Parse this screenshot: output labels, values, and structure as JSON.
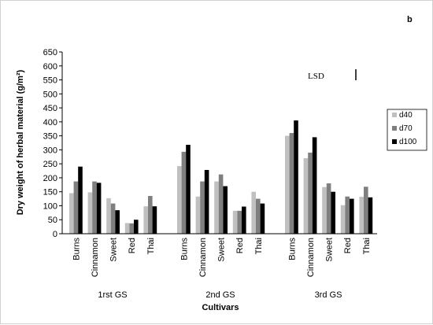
{
  "chart_data": {
    "type": "bar",
    "panel_label": "b",
    "ylabel": "Dry weight of herbal material (g/m²)",
    "xlabel": "Cultivars",
    "ylim": [
      0,
      650
    ],
    "yticks": [
      0,
      50,
      100,
      150,
      200,
      250,
      300,
      350,
      400,
      450,
      500,
      550,
      600,
      650
    ],
    "grid": false,
    "legend_position": "right",
    "lsd_label": "LSD",
    "groups": [
      {
        "name": "1rst GS",
        "categories": [
          "Burns",
          "Cinnamon",
          "Sweet",
          "Red",
          "Thai"
        ],
        "series": [
          {
            "name": "d40",
            "values": [
              145,
              148,
              127,
              38,
              98
            ]
          },
          {
            "name": "d70",
            "values": [
              187,
              187,
              108,
              37,
              135
            ]
          },
          {
            "name": "d100",
            "values": [
              240,
              182,
              84,
              50,
              98
            ]
          }
        ]
      },
      {
        "name": "2nd GS",
        "categories": [
          "Burns",
          "Cinnamon",
          "Sweet",
          "Red",
          "Thai"
        ],
        "series": [
          {
            "name": "d40",
            "values": [
              242,
              133,
              187,
              82,
              150
            ]
          },
          {
            "name": "d70",
            "values": [
              293,
              187,
              212,
              82,
              125
            ]
          },
          {
            "name": "d100",
            "values": [
              318,
              228,
              170,
              97,
              108
            ]
          }
        ]
      },
      {
        "name": "3rd GS",
        "categories": [
          "Burns",
          "Cinnamon",
          "Sweet",
          "Red",
          "Thai"
        ],
        "series": [
          {
            "name": "d40",
            "values": [
              350,
              270,
              167,
              102,
              132
            ]
          },
          {
            "name": "d70",
            "values": [
              360,
              290,
              180,
              133,
              168
            ]
          },
          {
            "name": "d100",
            "values": [
              405,
              345,
              150,
              125,
              130
            ]
          }
        ]
      }
    ],
    "colors": {
      "d40": "#c0c0c0",
      "d70": "#7f7f7f",
      "d100": "#000000"
    }
  }
}
